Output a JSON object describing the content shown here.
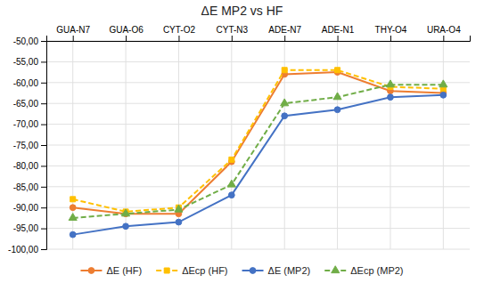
{
  "chart_data": {
    "type": "line",
    "title": "ΔE MP2 vs HF",
    "categories": [
      "GUA-N7",
      "GUA-O6",
      "CYT-O2",
      "CYT-N3",
      "ADE-N7",
      "ADE-N1",
      "THY-O4",
      "URA-O4"
    ],
    "series": [
      {
        "name": "ΔE (HF)",
        "color": "#ed7d31",
        "marker": "circle",
        "line_style": "solid",
        "values": [
          -90.0,
          -91.5,
          -91.5,
          -79.0,
          -58.0,
          -57.5,
          -62.0,
          -62.5
        ]
      },
      {
        "name": "ΔEcp (HF)",
        "color": "#ffc000",
        "marker": "square",
        "line_style": "dashed",
        "values": [
          -88.0,
          -91.0,
          -90.0,
          -78.5,
          -57.0,
          -57.0,
          -61.0,
          -61.5
        ]
      },
      {
        "name": "ΔE (MP2)",
        "color": "#4472c4",
        "marker": "circle",
        "line_style": "solid",
        "values": [
          -96.5,
          -94.5,
          -93.5,
          -87.0,
          -68.0,
          -66.5,
          -63.5,
          -63.0
        ]
      },
      {
        "name": "ΔEcp (MP2)",
        "color": "#70ad47",
        "marker": "triangle",
        "line_style": "dashed",
        "values": [
          -92.5,
          -91.5,
          -90.5,
          -84.5,
          -65.0,
          -63.5,
          -60.5,
          -60.5
        ]
      }
    ],
    "ylim": [
      -100.0,
      -50.0
    ],
    "yticks": [
      {
        "value": -100.0,
        "label": "-100,00"
      },
      {
        "value": -95.0,
        "label": "-95,00"
      },
      {
        "value": -90.0,
        "label": "-90,00"
      },
      {
        "value": -85.0,
        "label": "-85,00"
      },
      {
        "value": -80.0,
        "label": "-80,00"
      },
      {
        "value": -75.0,
        "label": "-75,00"
      },
      {
        "value": -70.0,
        "label": "-70,00"
      },
      {
        "value": -65.0,
        "label": "-65,00"
      },
      {
        "value": -60.0,
        "label": "-60,00"
      },
      {
        "value": -55.0,
        "label": "-55,00"
      },
      {
        "value": -50.0,
        "label": "-50,00"
      }
    ],
    "grid": true,
    "legend": "bottom"
  }
}
